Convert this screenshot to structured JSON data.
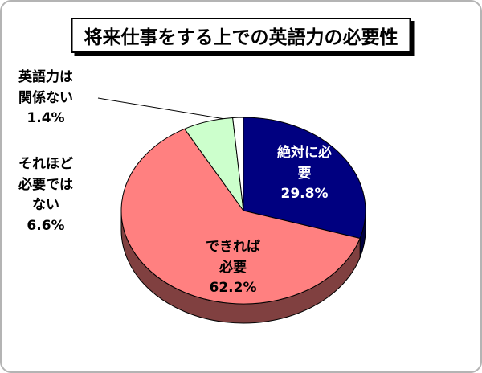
{
  "chart_data": {
    "type": "pie",
    "style": "3d",
    "title": "将来仕事をする上での英語力の必要性",
    "direction": "clockwise",
    "start_angle_deg": 0,
    "legend": "none",
    "background": "#FFFFFF",
    "segments": [
      {
        "name": "絶対に必要",
        "value": 29.8,
        "pct_label": "29.8%",
        "color": "#000080",
        "label_text": "絶対に必\n要\n29.8%",
        "label_color": "#FFFFFF",
        "label_position": "inside"
      },
      {
        "name": "できれば必要",
        "value": 62.2,
        "pct_label": "62.2%",
        "color": "#FF8080",
        "label_text": "できれば\n必要\n62.2%",
        "label_color": "#000000",
        "label_position": "inside"
      },
      {
        "name": "それほど必要ではない",
        "value": 6.6,
        "pct_label": "6.6%",
        "color": "#CCFFCC",
        "label_text": "それほど\n必要では\nない\n6.6%",
        "label_color": "#000000",
        "label_position": "outside-left"
      },
      {
        "name": "英語力は関係ない",
        "value": 1.4,
        "pct_label": "1.4%",
        "color": "#FFFFFF",
        "label_text": "英語力は\n関係ない\n1.4%",
        "label_color": "#000000",
        "label_position": "outside-left-with-leader-line"
      }
    ],
    "outline_color": "#000000"
  }
}
